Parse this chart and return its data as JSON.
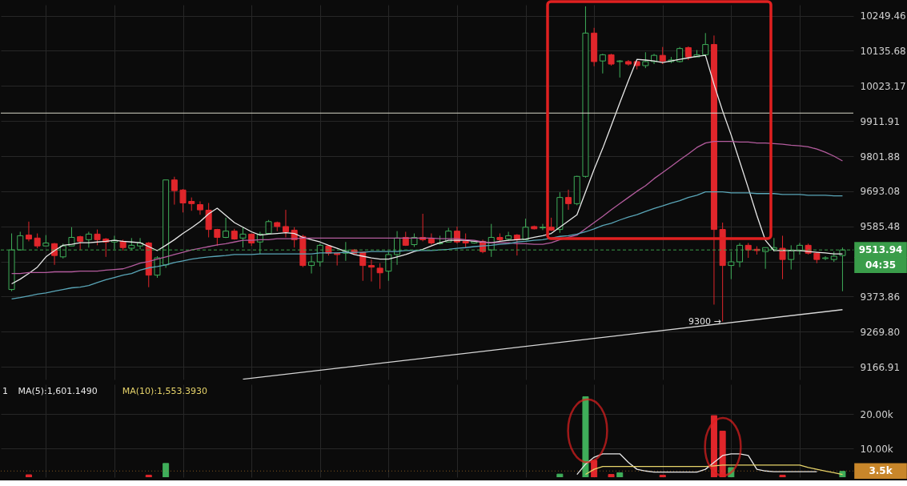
{
  "chart_data": [
    {
      "type": "candlestick",
      "categories": [
        null,
        null,
        null,
        null,
        null,
        null,
        null,
        null,
        null,
        null,
        null,
        null,
        null,
        null,
        null,
        null,
        null,
        null,
        null,
        null,
        null,
        null,
        null,
        null,
        null,
        null,
        null,
        null,
        null,
        null,
        null,
        null,
        null,
        null,
        null,
        null,
        null,
        null,
        null,
        null,
        null,
        null,
        null,
        null,
        null,
        null,
        null,
        null,
        null,
        null,
        null,
        null,
        null,
        null,
        null,
        null,
        null,
        null,
        null,
        null,
        null,
        null,
        null,
        null,
        null,
        null,
        null,
        null,
        null,
        null,
        null,
        null,
        null,
        null,
        null,
        null,
        null,
        null,
        null,
        null,
        null,
        null,
        null,
        null,
        null,
        null,
        null,
        null,
        null,
        null,
        null,
        null,
        null,
        null,
        null,
        null,
        null,
        null
      ],
      "ohlc": [
        [
          9395,
          9564,
          9390,
          9514
        ],
        [
          9514,
          9569,
          9512,
          9557
        ],
        [
          9559,
          9600,
          9540,
          9547
        ],
        [
          9550,
          9564,
          9519,
          9526
        ],
        [
          9526,
          9559,
          9526,
          9535
        ],
        [
          9533,
          9535,
          9469,
          9497
        ],
        [
          9493,
          9533,
          9488,
          9526
        ],
        [
          9526,
          9583,
          9526,
          9552
        ],
        [
          9554,
          9557,
          9514,
          9540
        ],
        [
          9545,
          9569,
          9521,
          9562
        ],
        [
          9562,
          9576,
          9528,
          9545
        ],
        [
          9547,
          9550,
          9493,
          9538
        ],
        [
          9538,
          9557,
          9516,
          9543
        ],
        [
          9540,
          9545,
          9512,
          9521
        ],
        [
          9519,
          9550,
          9512,
          9528
        ],
        [
          9526,
          9550,
          9516,
          9535
        ],
        [
          9535,
          9538,
          9402,
          9438
        ],
        [
          9438,
          9495,
          9430,
          9490
        ],
        [
          9469,
          9728,
          9460,
          9728
        ],
        [
          9728,
          9738,
          9652,
          9695
        ],
        [
          9697,
          9700,
          9628,
          9657
        ],
        [
          9662,
          9674,
          9633,
          9655
        ],
        [
          9652,
          9662,
          9621,
          9636
        ],
        [
          9635,
          9657,
          9552,
          9576
        ],
        [
          9576,
          9578,
          9526,
          9552
        ],
        [
          9552,
          9612,
          9550,
          9571
        ],
        [
          9571,
          9578,
          9545,
          9547
        ],
        [
          9550,
          9585,
          9521,
          9562
        ],
        [
          9562,
          9564,
          9526,
          9535
        ],
        [
          9538,
          9569,
          9502,
          9562
        ],
        [
          9564,
          9605,
          9562,
          9600
        ],
        [
          9597,
          9600,
          9571,
          9585
        ],
        [
          9585,
          9636,
          9552,
          9569
        ],
        [
          9574,
          9583,
          9521,
          9545
        ],
        [
          9555,
          9560,
          9462,
          9467
        ],
        [
          9467,
          9497,
          9443,
          9478
        ],
        [
          9478,
          9533,
          9464,
          9528
        ],
        [
          9526,
          9528,
          9497,
          9504
        ],
        [
          9504,
          9507,
          9467,
          9500
        ],
        [
          9504,
          9538,
          9481,
          9512
        ],
        [
          9514,
          9516,
          9500,
          9504
        ],
        [
          9507,
          9509,
          9421,
          9467
        ],
        [
          9467,
          9485,
          9419,
          9462
        ],
        [
          9459,
          9474,
          9397,
          9445
        ],
        [
          9450,
          9509,
          9421,
          9500
        ],
        [
          9500,
          9571,
          9469,
          9550
        ],
        [
          9552,
          9569,
          9526,
          9528
        ],
        [
          9530,
          9564,
          9523,
          9552
        ],
        [
          9552,
          9624,
          9540,
          9545
        ],
        [
          9547,
          9564,
          9530,
          9535
        ],
        [
          9533,
          9557,
          9530,
          9535
        ],
        [
          9538,
          9581,
          9538,
          9571
        ],
        [
          9571,
          9585,
          9533,
          9538
        ],
        [
          9540,
          9564,
          9521,
          9535
        ],
        [
          9535,
          9542,
          9533,
          9540
        ],
        [
          9540,
          9545,
          9504,
          9509
        ],
        [
          9514,
          9593,
          9493,
          9552
        ],
        [
          9552,
          9564,
          9540,
          9545
        ],
        [
          9547,
          9569,
          9542,
          9557
        ],
        [
          9559,
          9562,
          9497,
          9545
        ],
        [
          9545,
          9609,
          9545,
          9583
        ],
        [
          9585,
          9588,
          9576,
          9578
        ],
        [
          9581,
          9593,
          9574,
          9583
        ],
        [
          9583,
          9612,
          9571,
          9574
        ],
        [
          9576,
          9690,
          9566,
          9674
        ],
        [
          9674,
          9698,
          9636,
          9655
        ],
        [
          9655,
          9741,
          9650,
          9739
        ],
        [
          9739,
          10280,
          9735,
          10193
        ],
        [
          10193,
          10210,
          10086,
          10101
        ],
        [
          10103,
          10126,
          10063,
          10123
        ],
        [
          10123,
          10126,
          10088,
          10093
        ],
        [
          10101,
          10106,
          10050,
          10103
        ],
        [
          10101,
          10106,
          10088,
          10093
        ],
        [
          10101,
          10103,
          10076,
          10088
        ],
        [
          10088,
          10131,
          10080,
          10101
        ],
        [
          10101,
          10126,
          10093,
          10121
        ],
        [
          10121,
          10148,
          10093,
          10103
        ],
        [
          10101,
          10116,
          10096,
          10106
        ],
        [
          10101,
          10148,
          10098,
          10143
        ],
        [
          10146,
          10150,
          10106,
          10116
        ],
        [
          10116,
          10138,
          10116,
          10123
        ],
        [
          10123,
          10193,
          10123,
          10156
        ],
        [
          10156,
          10185,
          9350,
          9576
        ],
        [
          9576,
          9597,
          9300,
          9467
        ],
        [
          9467,
          9509,
          9426,
          9478
        ],
        [
          9478,
          9535,
          9462,
          9528
        ],
        [
          9528,
          9535,
          9490,
          9514
        ],
        [
          9516,
          9525,
          9500,
          9512
        ],
        [
          9509,
          9521,
          9457,
          9521
        ],
        [
          9516,
          9550,
          9509,
          9521
        ],
        [
          9519,
          9557,
          9426,
          9485
        ],
        [
          9485,
          9528,
          9455,
          9512
        ],
        [
          9512,
          9535,
          9500,
          9528
        ],
        [
          9528,
          9533,
          9500,
          9504
        ],
        [
          9504,
          9507,
          9474,
          9485
        ],
        [
          9488,
          9495,
          9483,
          9490
        ],
        [
          9485,
          9509,
          9478,
          9495
        ],
        [
          9497,
          9521,
          9390,
          9514
        ]
      ],
      "colors": [
        "#3fae5a",
        "#3fae5a",
        "#e0262b",
        "#e0262b",
        "#3fae5a",
        "#e0262b",
        "#3fae5a",
        "#3fae5a",
        "#e0262b",
        "#3fae5a",
        "#e0262b",
        "#e0262b",
        "#3fae5a",
        "#e0262b",
        "#3fae5a",
        "#3fae5a",
        "#e0262b",
        "#3fae5a",
        "#3fae5a",
        "#e0262b",
        "#e0262b",
        "#e0262b",
        "#e0262b",
        "#e0262b",
        "#e0262b",
        "#3fae5a",
        "#e0262b",
        "#3fae5a",
        "#e0262b",
        "#3fae5a",
        "#3fae5a",
        "#e0262b",
        "#e0262b",
        "#e0262b",
        "#e0262b",
        "#3fae5a",
        "#3fae5a",
        "#e0262b",
        "#e0262b",
        "#3fae5a",
        "#e0262b",
        "#e0262b",
        "#e0262b",
        "#e0262b",
        "#3fae5a",
        "#3fae5a",
        "#e0262b",
        "#3fae5a",
        "#e0262b",
        "#e0262b",
        "#3fae5a",
        "#3fae5a",
        "#e0262b",
        "#e0262b",
        "#3fae5a",
        "#e0262b",
        "#3fae5a",
        "#e0262b",
        "#3fae5a",
        "#e0262b",
        "#3fae5a",
        "#e0262b",
        "#3fae5a",
        "#e0262b",
        "#3fae5a",
        "#e0262b",
        "#3fae5a",
        "#3fae5a",
        "#e0262b",
        "#3fae5a",
        "#e0262b",
        "#3fae5a",
        "#e0262b",
        "#e0262b",
        "#3fae5a",
        "#3fae5a",
        "#e0262b",
        "#3fae5a",
        "#3fae5a",
        "#e0262b",
        "#3fae5a",
        "#3fae5a",
        "#e0262b",
        "#e0262b",
        "#3fae5a",
        "#3fae5a",
        "#e0262b",
        "#e0262b",
        "#3fae5a",
        "#3fae5a",
        "#e0262b",
        "#3fae5a",
        "#3fae5a",
        "#e0262b",
        "#e0262b",
        "#3fae5a",
        "#3fae5a",
        "#3fae5a"
      ],
      "series": [
        {
          "type": "line",
          "color": "#e8e8e8",
          "values": [
            9412,
            9426,
            9443,
            9462,
            9493,
            9512,
            9528,
            9531,
            9536,
            9536,
            9538,
            9540,
            9543,
            9540,
            9538,
            9536,
            9524,
            9512,
            9528,
            9545,
            9564,
            9581,
            9600,
            9624,
            9641,
            9619,
            9597,
            9583,
            9569,
            9559,
            9562,
            9564,
            9566,
            9564,
            9552,
            9545,
            9538,
            9528,
            9519,
            9509,
            9500,
            9495,
            9490,
            9486,
            9486,
            9493,
            9500,
            9509,
            9516,
            9526,
            9536,
            9543,
            9543,
            9543,
            9540,
            9538,
            9536,
            9540,
            9543,
            9545,
            9547,
            9552,
            9557,
            9564,
            9583,
            9602,
            9621,
            9691,
            9761,
            9826,
            9897,
            9969,
            10040,
            10108,
            10106,
            10103,
            10098,
            10103,
            10108,
            10113,
            10118,
            10121,
            10028,
            9944,
            9868,
            9785,
            9703,
            9619,
            9543,
            9512,
            9512,
            9512,
            9512,
            9509,
            9507,
            9505,
            9502,
            9502
          ]
        },
        {
          "type": "line",
          "color": "#b45c9e",
          "values": [
            9443,
            9443,
            9446,
            9446,
            9446,
            9448,
            9448,
            9448,
            9450,
            9450,
            9450,
            9453,
            9455,
            9457,
            9465,
            9474,
            9479,
            9486,
            9493,
            9500,
            9507,
            9514,
            9519,
            9524,
            9529,
            9533,
            9538,
            9543,
            9543,
            9545,
            9545,
            9548,
            9548,
            9548,
            9550,
            9550,
            9550,
            9550,
            9550,
            9550,
            9550,
            9550,
            9550,
            9550,
            9550,
            9550,
            9550,
            9550,
            9550,
            9550,
            9548,
            9548,
            9548,
            9545,
            9543,
            9538,
            9536,
            9536,
            9536,
            9533,
            9533,
            9531,
            9531,
            9536,
            9545,
            9552,
            9559,
            9578,
            9597,
            9616,
            9636,
            9655,
            9674,
            9693,
            9710,
            9732,
            9751,
            9770,
            9790,
            9809,
            9829,
            9843,
            9848,
            9848,
            9848,
            9846,
            9846,
            9843,
            9843,
            9841,
            9839,
            9836,
            9834,
            9831,
            9824,
            9814,
            9802,
            9787
          ]
        },
        {
          "type": "line",
          "color": "#5aa6b8",
          "values": [
            9367,
            9371,
            9376,
            9381,
            9385,
            9390,
            9395,
            9400,
            9402,
            9407,
            9416,
            9424,
            9431,
            9438,
            9443,
            9453,
            9460,
            9464,
            9469,
            9476,
            9481,
            9486,
            9490,
            9493,
            9495,
            9497,
            9500,
            9500,
            9500,
            9502,
            9502,
            9502,
            9502,
            9502,
            9502,
            9502,
            9505,
            9505,
            9505,
            9507,
            9507,
            9507,
            9509,
            9509,
            9509,
            9509,
            9512,
            9512,
            9512,
            9512,
            9514,
            9516,
            9519,
            9521,
            9524,
            9526,
            9528,
            9531,
            9533,
            9538,
            9540,
            9543,
            9545,
            9550,
            9555,
            9557,
            9562,
            9569,
            9578,
            9588,
            9595,
            9605,
            9614,
            9621,
            9631,
            9640,
            9648,
            9657,
            9664,
            9674,
            9681,
            9691,
            9691,
            9691,
            9688,
            9688,
            9688,
            9686,
            9686,
            9686,
            9683,
            9683,
            9683,
            9681,
            9681,
            9681,
            9679,
            9679
          ]
        },
        {
          "type": "line",
          "color": "#d8d8d8",
          "values": [
            null,
            null,
            null,
            null,
            null,
            null,
            null,
            null,
            null,
            null,
            null,
            null,
            null,
            null,
            null,
            null,
            null,
            null,
            null,
            null,
            null,
            null,
            null,
            null,
            null,
            null,
            null,
            9131,
            null,
            null,
            null,
            null,
            null,
            null,
            null,
            null,
            null,
            null,
            null,
            null,
            null,
            null,
            null,
            null,
            null,
            null,
            null,
            null,
            null,
            null,
            null,
            null,
            null,
            null,
            null,
            null,
            null,
            null,
            null,
            null,
            null,
            null,
            null,
            null,
            null,
            null,
            null,
            null,
            null,
            null,
            null,
            null,
            null,
            null,
            null,
            null,
            null,
            null,
            null,
            null,
            null,
            null,
            null,
            null,
            null,
            null,
            null,
            null,
            null,
            null,
            null,
            null,
            null,
            null,
            null,
            null,
            null,
            9335
          ]
        }
      ],
      "ylim": [
        9130,
        10285
      ],
      "yticks": [
        10249.46,
        10135.68,
        10023.17,
        9911.91,
        9801.88,
        9693.08,
        9585.48,
        {
          "value": 9479,
          "label": null
        },
        9373.86,
        {
          "value": 9269.8,
          "label": "9269.80"
        },
        9166.91
      ],
      "log": "y",
      "grid": true,
      "tick_labels": "y",
      "ref_lines": [
        {
          "axis": "y",
          "value": 9937,
          "color": "#d8d8c8"
        },
        {
          "axis": "y",
          "value": 9513.94,
          "label": "9513.94",
          "color": "#3a9d4a",
          "line_style": "dashed"
        }
      ],
      "annotations": [
        {
          "text": "9300 →",
          "y": 9300
        },
        "04:35"
      ]
    },
    {
      "type": "bar",
      "categories": [
        null,
        null,
        null,
        null,
        null,
        null,
        null,
        null,
        null,
        null,
        null,
        null,
        null,
        null,
        null,
        null,
        null,
        null,
        null,
        null,
        null,
        null,
        null,
        null,
        null,
        null,
        null,
        null,
        null,
        null,
        null,
        null,
        null,
        null,
        null,
        null,
        null,
        null,
        null,
        null,
        null,
        null,
        null,
        null,
        null,
        null,
        null,
        null,
        null,
        null,
        null,
        null,
        null,
        null,
        null,
        null,
        null,
        null,
        null,
        null,
        null,
        null,
        null,
        null,
        null,
        null,
        null,
        null,
        null,
        null,
        null,
        null,
        null,
        null,
        null,
        null,
        null,
        null,
        null,
        null,
        null,
        null,
        null,
        null,
        null,
        null,
        null,
        null,
        null,
        null,
        null,
        null,
        null,
        null,
        null,
        null,
        null,
        null
      ],
      "series": [
        {
          "type": "bar",
          "values": [
            null,
            null,
            2400,
            null,
            null,
            null,
            null,
            null,
            null,
            null,
            null,
            null,
            null,
            null,
            null,
            null,
            2300,
            null,
            5700,
            null,
            null,
            null,
            null,
            null,
            null,
            null,
            null,
            null,
            null,
            null,
            null,
            null,
            null,
            null,
            null,
            null,
            null,
            null,
            null,
            null,
            null,
            null,
            null,
            null,
            null,
            null,
            null,
            null,
            null,
            null,
            null,
            null,
            null,
            null,
            null,
            null,
            null,
            null,
            null,
            null,
            null,
            null,
            null,
            null,
            2600,
            null,
            null,
            25100,
            6600,
            null,
            2500,
            3000,
            null,
            null,
            null,
            null,
            2300,
            null,
            null,
            null,
            null,
            null,
            19600,
            15100,
            4500,
            null,
            null,
            null,
            null,
            null,
            2300,
            null,
            null,
            null,
            null,
            null,
            null,
            3400
          ],
          "colors": [
            "#3fae5a",
            "#3fae5a",
            "#e0262b",
            "#e0262b",
            "#3fae5a",
            "#e0262b",
            "#3fae5a",
            "#3fae5a",
            "#e0262b",
            "#3fae5a",
            "#e0262b",
            "#e0262b",
            "#3fae5a",
            "#e0262b",
            "#3fae5a",
            "#3fae5a",
            "#e0262b",
            "#3fae5a",
            "#3fae5a",
            "#e0262b",
            "#e0262b",
            "#e0262b",
            "#e0262b",
            "#e0262b",
            "#e0262b",
            "#3fae5a",
            "#e0262b",
            "#3fae5a",
            "#e0262b",
            "#3fae5a",
            "#3fae5a",
            "#e0262b",
            "#e0262b",
            "#e0262b",
            "#e0262b",
            "#3fae5a",
            "#3fae5a",
            "#e0262b",
            "#e0262b",
            "#3fae5a",
            "#e0262b",
            "#e0262b",
            "#e0262b",
            "#e0262b",
            "#3fae5a",
            "#3fae5a",
            "#e0262b",
            "#3fae5a",
            "#e0262b",
            "#e0262b",
            "#3fae5a",
            "#3fae5a",
            "#e0262b",
            "#e0262b",
            "#3fae5a",
            "#e0262b",
            "#3fae5a",
            "#e0262b",
            "#3fae5a",
            "#e0262b",
            "#3fae5a",
            "#e0262b",
            "#3fae5a",
            "#e0262b",
            "#3fae5a",
            "#e0262b",
            "#3fae5a",
            "#3fae5a",
            "#e0262b",
            "#3fae5a",
            "#e0262b",
            "#3fae5a",
            "#e0262b",
            "#e0262b",
            "#3fae5a",
            "#3fae5a",
            "#e0262b",
            "#3fae5a",
            "#3fae5a",
            "#e0262b",
            "#3fae5a",
            "#3fae5a",
            "#e0262b",
            "#e0262b",
            "#3fae5a",
            "#3fae5a",
            "#e0262b",
            "#e0262b",
            "#3fae5a",
            "#3fae5a",
            "#e0262b",
            "#3fae5a",
            "#3fae5a",
            "#e0262b",
            "#e0262b",
            "#3fae5a",
            "#3fae5a",
            "#3fae5a"
          ]
        },
        {
          "type": "line",
          "color": "#e8e8e8",
          "values": [
            null,
            null,
            null,
            null,
            null,
            null,
            null,
            null,
            null,
            null,
            null,
            null,
            null,
            null,
            null,
            null,
            null,
            null,
            null,
            null,
            null,
            null,
            null,
            null,
            null,
            null,
            null,
            null,
            null,
            null,
            null,
            null,
            null,
            null,
            null,
            null,
            null,
            null,
            null,
            null,
            null,
            null,
            null,
            null,
            null,
            null,
            null,
            null,
            null,
            null,
            null,
            null,
            null,
            null,
            null,
            null,
            null,
            null,
            null,
            null,
            null,
            null,
            null,
            null,
            null,
            null,
            2500,
            5500,
            7500,
            8500,
            8500,
            8500,
            6000,
            4000,
            3500,
            3200,
            3200,
            3200,
            3200,
            3200,
            3200,
            4000,
            6000,
            8000,
            8500,
            8500,
            8000,
            4000,
            3500,
            3300,
            3300,
            3300,
            3300,
            3300,
            3300,
            null,
            null,
            null
          ]
        },
        {
          "type": "line",
          "color": "#e6d36a",
          "values": [
            null,
            null,
            null,
            null,
            null,
            null,
            null,
            null,
            null,
            null,
            null,
            null,
            null,
            null,
            null,
            null,
            null,
            null,
            null,
            null,
            null,
            null,
            null,
            null,
            null,
            null,
            null,
            null,
            null,
            null,
            null,
            null,
            null,
            null,
            null,
            null,
            null,
            null,
            null,
            null,
            null,
            null,
            null,
            null,
            null,
            null,
            null,
            null,
            null,
            null,
            null,
            null,
            null,
            null,
            null,
            null,
            null,
            null,
            null,
            null,
            null,
            null,
            null,
            null,
            null,
            null,
            null,
            2500,
            4000,
            4800,
            4800,
            4800,
            4800,
            4800,
            4800,
            4800,
            4800,
            4800,
            4800,
            4800,
            4800,
            4800,
            5000,
            5200,
            5200,
            5200,
            5200,
            5200,
            5200,
            5200,
            5200,
            5200,
            5200,
            4500,
            4000,
            3500,
            3000,
            2500
          ]
        }
      ],
      "ylim": [
        1700,
        28700
      ],
      "yticks": [
        {
          "value": 10000,
          "label": "10.00k"
        },
        {
          "value": 20000,
          "label": "20.00k"
        }
      ],
      "grid": true,
      "tick_labels": "y",
      "ref_lines": [
        {
          "axis": "y",
          "value": 3500,
          "label": "3.5k",
          "color": "#c8862a",
          "line_style": "dotted"
        }
      ],
      "annotations": [
        "1",
        "MA(5):1,601.1490",
        "MA(10):1,553.3930"
      ]
    }
  ]
}
